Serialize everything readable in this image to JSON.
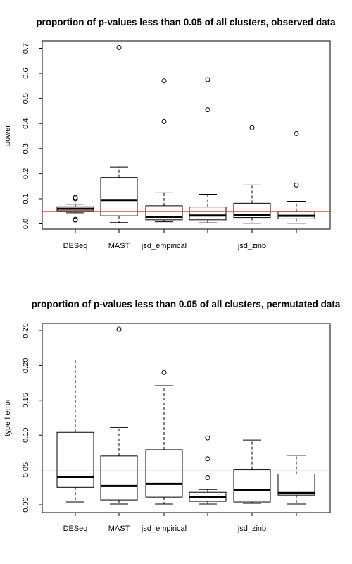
{
  "chart_data": [
    {
      "type": "boxplot",
      "title": "proportion of p-values less than 0.05 of all clusters, observed data",
      "xlabel": "",
      "ylabel": "power",
      "ylim": [
        0,
        0.7
      ],
      "yticks": [
        "0.0",
        "0.1",
        "0.2",
        "0.3",
        "0.4",
        "0.5",
        "0.6",
        "0.7"
      ],
      "categories": [
        "DESeq",
        "MAST",
        "jsd_empirical",
        "",
        "jsd_zinb",
        ""
      ],
      "reference_line": {
        "value": 0.05,
        "color": "#e8413c"
      },
      "boxes": [
        {
          "min": 0.044,
          "q1": 0.052,
          "median": 0.06,
          "q3": 0.068,
          "max": 0.078,
          "outliers": [
            0.105,
            0.1,
            0.015,
            0.018
          ]
        },
        {
          "min": 0.005,
          "q1": 0.032,
          "median": 0.095,
          "q3": 0.185,
          "max": 0.226,
          "outliers": [
            0.703
          ]
        },
        {
          "min": 0.008,
          "q1": 0.016,
          "median": 0.028,
          "q3": 0.072,
          "max": 0.126,
          "outliers": [
            0.57,
            0.408
          ]
        },
        {
          "min": 0.004,
          "q1": 0.016,
          "median": 0.033,
          "q3": 0.067,
          "max": 0.118,
          "outliers": [
            0.575,
            0.455
          ]
        },
        {
          "min": 0.002,
          "q1": 0.025,
          "median": 0.035,
          "q3": 0.082,
          "max": 0.155,
          "outliers": [
            0.383
          ]
        },
        {
          "min": 0.002,
          "q1": 0.02,
          "median": 0.032,
          "q3": 0.05,
          "max": 0.09,
          "outliers": [
            0.36,
            0.155
          ]
        }
      ]
    },
    {
      "type": "boxplot",
      "title": "proportion of p-values less than 0.05 of all clusters, permutated data",
      "xlabel": "",
      "ylabel": "type I error",
      "ylim": [
        0,
        0.25
      ],
      "yticks": [
        "0.00",
        "0.05",
        "0.10",
        "0.15",
        "0.20",
        "0.25"
      ],
      "categories": [
        "DESeq",
        "MAST",
        "jsd_empirical",
        "",
        "jsd_zinb",
        ""
      ],
      "reference_line": {
        "value": 0.05,
        "color": "#e8413c"
      },
      "boxes": [
        {
          "min": 0.004,
          "q1": 0.025,
          "median": 0.04,
          "q3": 0.104,
          "max": 0.208,
          "outliers": []
        },
        {
          "min": 0.001,
          "q1": 0.007,
          "median": 0.027,
          "q3": 0.07,
          "max": 0.111,
          "outliers": [
            0.252
          ]
        },
        {
          "min": 0.001,
          "q1": 0.011,
          "median": 0.03,
          "q3": 0.079,
          "max": 0.171,
          "outliers": [
            0.19
          ]
        },
        {
          "min": 0.001,
          "q1": 0.005,
          "median": 0.011,
          "q3": 0.018,
          "max": 0.022,
          "outliers": [
            0.096,
            0.066,
            0.039
          ]
        },
        {
          "min": 0.002,
          "q1": 0.004,
          "median": 0.021,
          "q3": 0.051,
          "max": 0.093,
          "outliers": []
        },
        {
          "min": 0.001,
          "q1": 0.014,
          "median": 0.017,
          "q3": 0.044,
          "max": 0.071,
          "outliers": []
        }
      ]
    }
  ]
}
